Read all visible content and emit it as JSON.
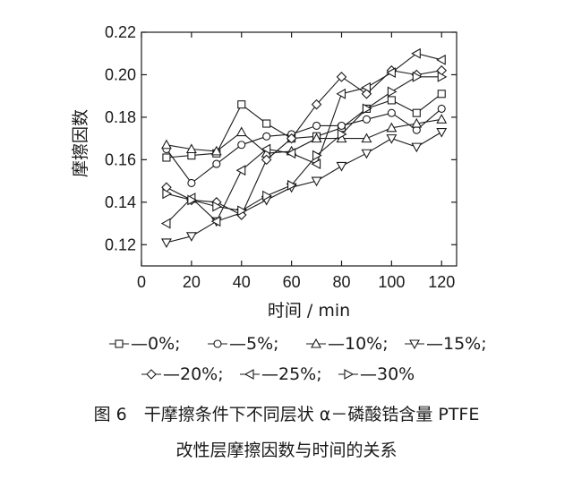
{
  "chart_data": {
    "type": "line",
    "xlabel": "时间 / min",
    "ylabel": "摩擦因数",
    "xlim": [
      0,
      126
    ],
    "ylim": [
      0.11,
      0.22
    ],
    "x_ticks": [
      0,
      20,
      40,
      60,
      80,
      100,
      120
    ],
    "y_ticks": [
      0.12,
      0.14,
      0.16,
      0.18,
      0.2,
      0.22
    ],
    "x_tick_labels": [
      "0",
      "20",
      "40",
      "60",
      "80",
      "100",
      "120"
    ],
    "y_tick_labels": [
      "0.12",
      "0.14",
      "0.16",
      "0.18",
      "0.20",
      "0.22"
    ],
    "grid": false,
    "legend_position": "below",
    "x": [
      10,
      20,
      30,
      40,
      50,
      60,
      70,
      80,
      90,
      100,
      110,
      120
    ],
    "series": [
      {
        "name": "0%",
        "marker": "square",
        "values": [
          0.161,
          0.162,
          0.163,
          0.186,
          0.177,
          0.17,
          0.171,
          0.175,
          0.184,
          0.188,
          0.182,
          0.191
        ]
      },
      {
        "name": "5%",
        "marker": "circle",
        "values": [
          0.165,
          0.149,
          0.158,
          0.167,
          0.171,
          0.172,
          0.176,
          0.176,
          0.179,
          0.182,
          0.174,
          0.184
        ]
      },
      {
        "name": "10%",
        "marker": "triangle-up",
        "values": [
          0.167,
          0.165,
          0.164,
          0.173,
          0.163,
          0.164,
          0.17,
          0.17,
          0.17,
          0.175,
          0.177,
          0.179
        ]
      },
      {
        "name": "15%",
        "marker": "triangle-down",
        "values": [
          0.121,
          0.124,
          0.131,
          0.135,
          0.141,
          0.147,
          0.15,
          0.157,
          0.163,
          0.17,
          0.166,
          0.173
        ]
      },
      {
        "name": "20%",
        "marker": "diamond",
        "values": [
          0.147,
          0.141,
          0.14,
          0.134,
          0.16,
          0.17,
          0.186,
          0.199,
          0.191,
          0.202,
          0.2,
          0.202
        ]
      },
      {
        "name": "25%",
        "marker": "triangle-left",
        "values": [
          0.13,
          0.142,
          0.131,
          0.155,
          0.165,
          0.163,
          0.158,
          0.191,
          0.194,
          0.201,
          0.21,
          0.207
        ]
      },
      {
        "name": "30%",
        "marker": "triangle-right",
        "values": [
          0.144,
          0.141,
          0.138,
          0.136,
          0.143,
          0.148,
          0.162,
          0.172,
          0.184,
          0.192,
          0.199,
          0.199
        ]
      }
    ],
    "legend": {
      "row1": [
        {
          "series": 0,
          "text": "—0%;"
        },
        {
          "series": 1,
          "text": "—5%;"
        },
        {
          "series": 2,
          "text": "—10%;"
        },
        {
          "series": 3,
          "text": "—15%;"
        }
      ],
      "row2": [
        {
          "series": 4,
          "text": "—20%;"
        },
        {
          "series": 5,
          "text": "—25%;"
        },
        {
          "series": 6,
          "text": "—30%"
        }
      ]
    }
  },
  "caption": {
    "line1": "图 6　干摩擦条件下不同层状 α－磷酸锆含量 PTFE",
    "line2": "改性层摩擦因数与时间的关系"
  }
}
